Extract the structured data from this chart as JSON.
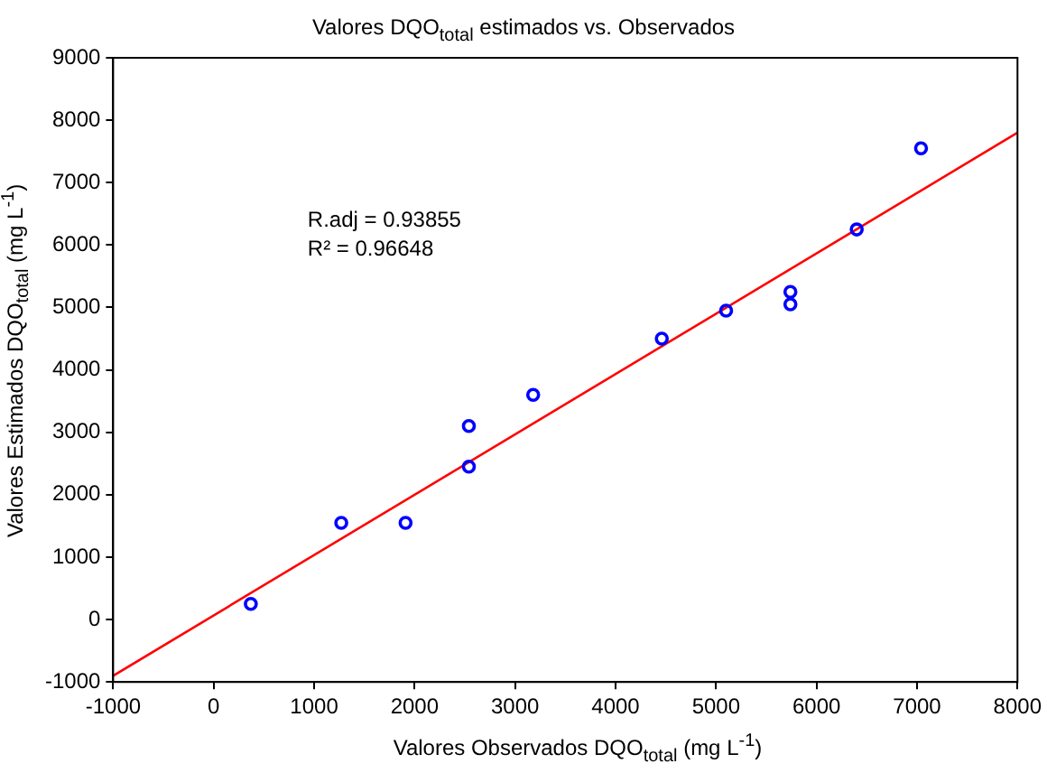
{
  "chart_data": {
    "type": "scatter",
    "title": "Valores DQO$_{total}$ estimados vs. Observados",
    "xlabel": "Valores Observados DQO$_{total}$ (mg L$^{-1}$)",
    "ylabel": "Valores Estimados DQO$_{total}$ (mg L$^{-1}$)",
    "series": [
      {
        "type": "scatter",
        "color": "#0000ff",
        "marker": "circle",
        "x": [
          370,
          1270,
          1910,
          2540,
          2540,
          3180,
          4460,
          5100,
          5740,
          5740,
          6400,
          7040
        ],
        "values": [
          250,
          1550,
          1550,
          3100,
          2450,
          3600,
          4500,
          4950,
          5250,
          5050,
          6250,
          7550
        ]
      },
      {
        "type": "line",
        "color": "#ff0000",
        "marker": "none",
        "x": [
          -1000,
          8000
        ],
        "values": [
          -900,
          7800
        ]
      }
    ],
    "xlim": [
      -1000,
      8000
    ],
    "xticks": [
      -1000,
      0,
      1000,
      2000,
      3000,
      4000,
      5000,
      6000,
      7000,
      8000
    ],
    "ylim": [
      -1000,
      9000
    ],
    "yticks": [
      -1000,
      0,
      1000,
      2000,
      3000,
      4000,
      5000,
      6000,
      7000,
      8000,
      9000
    ],
    "annotations": [
      "R.adj = 0.93855",
      "R² = 0.96648"
    ],
    "grid": false,
    "legend": false
  }
}
